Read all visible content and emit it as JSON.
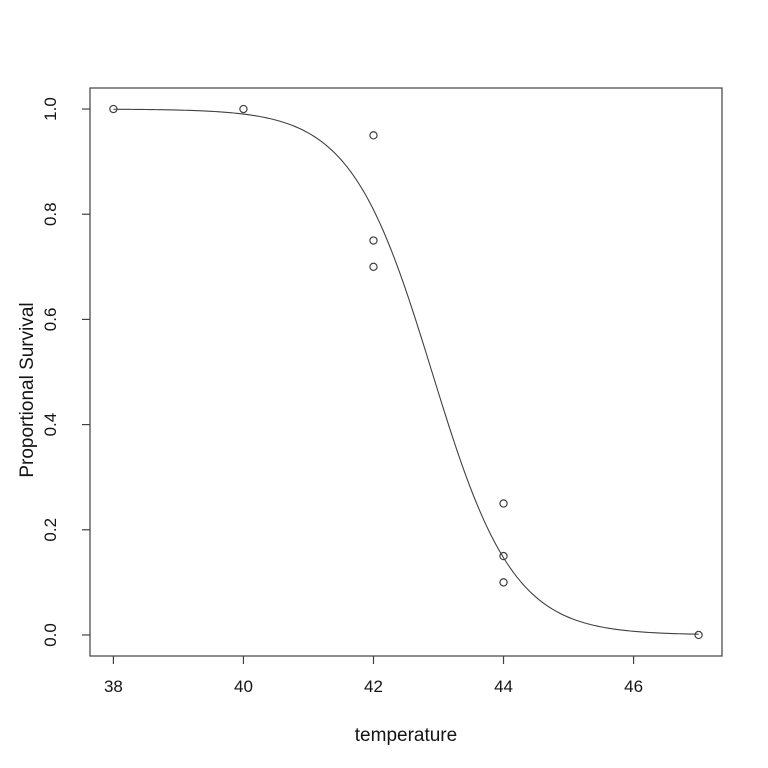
{
  "figure": {
    "background": "#ffffff",
    "line_color": "#404040",
    "text_color": "#141414"
  },
  "chart_data": {
    "type": "scatter",
    "title": "",
    "xlabel": "temperature",
    "ylabel": "Proportional Survival",
    "x_ticks": [
      "38",
      "40",
      "42",
      "44",
      "46"
    ],
    "x_tick_values": [
      38,
      40,
      42,
      44,
      46
    ],
    "y_ticks": [
      "0.0",
      "0.2",
      "0.4",
      "0.6",
      "0.8",
      "1.0"
    ],
    "y_tick_values": [
      0.0,
      0.2,
      0.4,
      0.6,
      0.8,
      1.0
    ],
    "xlim": [
      37.64,
      47.36
    ],
    "ylim": [
      -0.04,
      1.04
    ],
    "grid": false,
    "legend": null,
    "points": [
      {
        "x": 38,
        "y": 1.0
      },
      {
        "x": 40,
        "y": 1.0
      },
      {
        "x": 42,
        "y": 0.95
      },
      {
        "x": 42,
        "y": 0.75
      },
      {
        "x": 42,
        "y": 0.7
      },
      {
        "x": 44,
        "y": 0.25
      },
      {
        "x": 44,
        "y": 0.15
      },
      {
        "x": 44,
        "y": 0.1
      },
      {
        "x": 47,
        "y": 0.0
      }
    ],
    "fit_curve": {
      "type": "logistic",
      "formula": "y = 1 / (1 + exp(slope * (x - midpoint)))",
      "midpoint": 42.9,
      "slope": 1.6,
      "x_range": [
        38,
        47
      ]
    }
  }
}
